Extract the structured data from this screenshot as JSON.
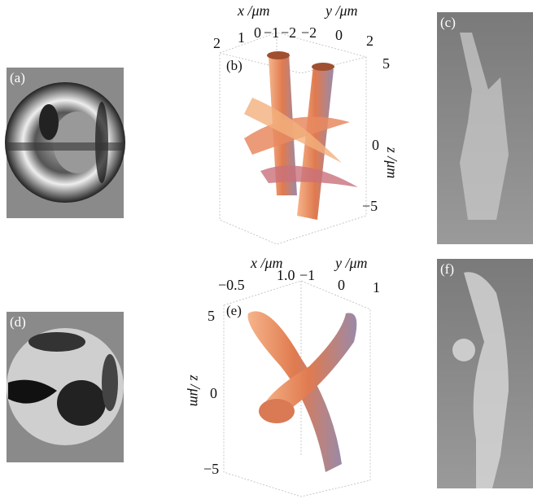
{
  "panels": {
    "a": {
      "label": "(a)"
    },
    "b": {
      "label": "(b)",
      "x_axis": {
        "title": "x /μm",
        "ticks": [
          "2",
          "1",
          "0",
          "−1",
          "−2"
        ]
      },
      "y_axis": {
        "title": "y /μm",
        "ticks": [
          "−2",
          "0",
          "2"
        ]
      },
      "z_axis": {
        "title": "z /μm",
        "ticks": [
          "5",
          "0",
          "−5"
        ]
      }
    },
    "c": {
      "label": "(c)"
    },
    "d": {
      "label": "(d)"
    },
    "e": {
      "label": "(e)",
      "x_axis": {
        "title": "x /μm",
        "ticks": [
          "−0.5",
          "1.0"
        ]
      },
      "y_axis": {
        "title": "y /μm",
        "ticks": [
          "−1",
          "0",
          "1"
        ]
      },
      "z_axis": {
        "title": "z /μm",
        "ticks": [
          "5",
          "0",
          "−5"
        ]
      }
    },
    "f": {
      "label": "(f)"
    }
  }
}
